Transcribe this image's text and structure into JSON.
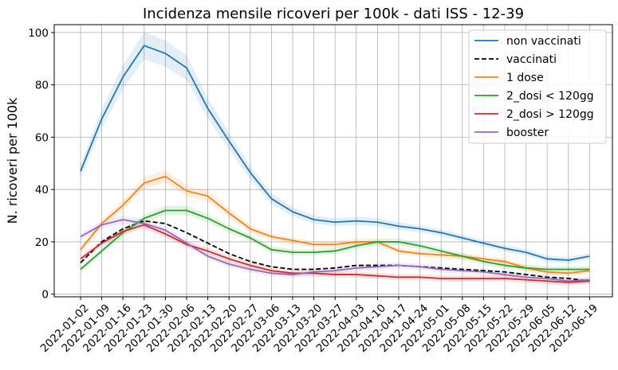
{
  "chart_data": {
    "type": "line",
    "title": "Incidenza mensile ricoveri per 100k - dati ISS - 12-39",
    "xlabel": "",
    "ylabel": "N. ricoveri per 100k",
    "ylim": [
      -1,
      103
    ],
    "yticks": [
      0,
      20,
      40,
      60,
      80,
      100
    ],
    "grid": true,
    "legend_position": "top-right",
    "x": [
      "2022-01-02",
      "2022-01-09",
      "2022-01-16",
      "2022-01-23",
      "2022-01-30",
      "2022-02-06",
      "2022-02-13",
      "2022-02-20",
      "2022-02-27",
      "2022-03-06",
      "2022-03-13",
      "2022-03-20",
      "2022-03-27",
      "2022-04-03",
      "2022-04-10",
      "2022-04-17",
      "2022-04-24",
      "2022-05-01",
      "2022-05-08",
      "2022-05-15",
      "2022-05-22",
      "2022-05-29",
      "2022-06-05",
      "2022-06-12",
      "2022-06-19"
    ],
    "series": [
      {
        "name": "non vaccinati",
        "color": "#1f77b4",
        "dash": false,
        "band": true,
        "values": [
          47,
          67,
          83,
          95,
          92,
          86.5,
          71,
          58.5,
          46.5,
          36.5,
          31.5,
          28.5,
          27.5,
          28,
          27.5,
          26,
          25,
          23.5,
          21.5,
          19.5,
          17.5,
          16,
          13.5,
          13,
          14.5
        ]
      },
      {
        "name": "vaccinati",
        "color": "#000000",
        "dash": true,
        "band": false,
        "values": [
          12,
          20,
          25,
          28,
          27,
          23.5,
          19.5,
          15.5,
          12.5,
          10.5,
          9.5,
          9.5,
          10,
          11,
          11,
          11,
          10.5,
          10,
          9.5,
          9,
          8.5,
          7.5,
          6.5,
          6,
          5
        ]
      },
      {
        "name": "1 dose",
        "color": "#ff7f0e",
        "dash": false,
        "band": true,
        "values": [
          17,
          27,
          34,
          42.5,
          45,
          39.5,
          37.5,
          31,
          25,
          22,
          20.5,
          19,
          19,
          20,
          20,
          16.5,
          15.5,
          15,
          14.5,
          13.5,
          12.5,
          10,
          8.5,
          8,
          9
        ]
      },
      {
        "name": "2_dosi < 120gg",
        "color": "#2ca02c",
        "dash": false,
        "band": true,
        "values": [
          9.5,
          16.5,
          23.5,
          29,
          32,
          32,
          29,
          25,
          21.5,
          17,
          16,
          16,
          16.5,
          18.5,
          20,
          20,
          18.5,
          16.5,
          14.5,
          12.5,
          11,
          10,
          9.5,
          9.5,
          9.5
        ]
      },
      {
        "name": "2_dosi > 120gg",
        "color": "#d62728",
        "dash": false,
        "band": true,
        "values": [
          13.5,
          19.5,
          24,
          26.5,
          23,
          19,
          16.5,
          13.5,
          11,
          9,
          8,
          8,
          7.5,
          7.5,
          7,
          6.5,
          6.5,
          6,
          6,
          6,
          6,
          5.5,
          5,
          4.5,
          5
        ]
      },
      {
        "name": "booster",
        "color": "#9467bd",
        "dash": false,
        "band": true,
        "values": [
          22,
          26.5,
          28.5,
          27,
          24.5,
          19.5,
          14.5,
          11.5,
          9.5,
          8,
          7.5,
          8.5,
          9,
          10,
          10.5,
          11,
          10.5,
          9.5,
          9,
          8.5,
          7.5,
          6.5,
          6,
          5,
          5.5
        ]
      }
    ]
  }
}
